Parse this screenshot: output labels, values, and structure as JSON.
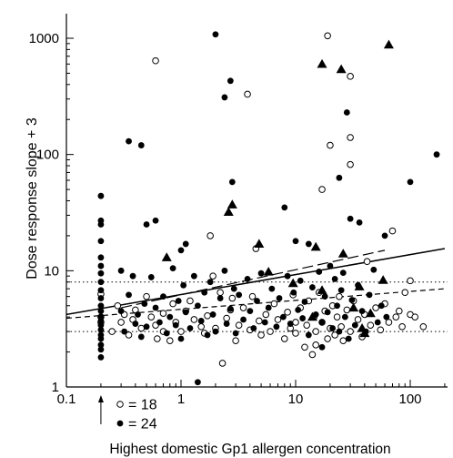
{
  "chart_data": {
    "type": "scatter",
    "title": "",
    "xlabel": "Highest domestic Gp1 allergen concentration",
    "ylabel": "Dose response slope + 3",
    "xscale": "log",
    "yscale": "log",
    "xlim": [
      0.1,
      200
    ],
    "ylim": [
      1,
      1500
    ],
    "x_ticks": [
      {
        "value": 0.1,
        "label": "0.1"
      },
      {
        "value": 1,
        "label": "1"
      },
      {
        "value": 10,
        "label": "10"
      },
      {
        "value": 100,
        "label": "100"
      }
    ],
    "y_ticks": [
      {
        "value": 1,
        "label": "1"
      },
      {
        "value": 10,
        "label": "10"
      },
      {
        "value": 100,
        "label": "100"
      },
      {
        "value": 1000,
        "label": "1000"
      }
    ],
    "grid": false,
    "reference_lines": [
      {
        "style": "dotted",
        "y": 8.0
      },
      {
        "style": "dotted",
        "y": 3.0
      }
    ],
    "regression_lines": [
      {
        "style": "solid",
        "points": [
          [
            0.1,
            4.2
          ],
          [
            200,
            15.5
          ]
        ]
      },
      {
        "style": "long-dash",
        "points": [
          [
            0.3,
            4.8
          ],
          [
            60,
            15.0
          ]
        ]
      },
      {
        "style": "short-dash",
        "points": [
          [
            0.1,
            3.9
          ],
          [
            200,
            7.0
          ]
        ]
      }
    ],
    "detection_limit_x": 0.2,
    "legend": {
      "placement": "bottom-left",
      "entries": [
        {
          "marker": "open-circle",
          "label": "= 18"
        },
        {
          "marker": "filled-circle",
          "label": "= 24"
        }
      ]
    },
    "series": [
      {
        "marker": "open-circle",
        "points": [
          [
            0.2,
            6.3
          ],
          [
            0.2,
            4.0
          ],
          [
            0.2,
            3.6
          ],
          [
            0.6,
            640
          ],
          [
            1.8,
            20
          ],
          [
            2.8,
            5.8
          ],
          [
            3.8,
            330
          ],
          [
            4.5,
            15.5
          ],
          [
            17,
            50
          ],
          [
            19,
            1050
          ],
          [
            20,
            120
          ],
          [
            30,
            470
          ],
          [
            30,
            140
          ],
          [
            30,
            82
          ],
          [
            70,
            22
          ],
          [
            100,
            8.2
          ],
          [
            0.25,
            3.0
          ],
          [
            0.28,
            5.0
          ],
          [
            0.3,
            3.6
          ],
          [
            0.32,
            4.2
          ],
          [
            0.35,
            2.8
          ],
          [
            0.38,
            3.8
          ],
          [
            0.4,
            4.6
          ],
          [
            0.45,
            3.2
          ],
          [
            0.5,
            6.0
          ],
          [
            0.55,
            4.0
          ],
          [
            0.6,
            3.4
          ],
          [
            0.62,
            2.6
          ],
          [
            0.7,
            3.0
          ],
          [
            0.7,
            4.3
          ],
          [
            0.8,
            2.5
          ],
          [
            0.85,
            5.2
          ],
          [
            0.9,
            3.6
          ],
          [
            1.0,
            3.0
          ],
          [
            1.1,
            4.5
          ],
          [
            1.2,
            5.5
          ],
          [
            1.3,
            3.8
          ],
          [
            1.5,
            3.3
          ],
          [
            1.6,
            2.9
          ],
          [
            1.7,
            4.1
          ],
          [
            1.9,
            9.0
          ],
          [
            2.0,
            3.2
          ],
          [
            2.2,
            6.5
          ],
          [
            2.3,
            1.6
          ],
          [
            2.5,
            3.9
          ],
          [
            2.7,
            4.6
          ],
          [
            3.0,
            2.5
          ],
          [
            3.2,
            3.4
          ],
          [
            3.5,
            4.8
          ],
          [
            4.0,
            3.1
          ],
          [
            4.2,
            6.0
          ],
          [
            4.8,
            3.7
          ],
          [
            5.0,
            2.8
          ],
          [
            5.5,
            4.2
          ],
          [
            6.0,
            3.0
          ],
          [
            6.5,
            5.2
          ],
          [
            7.0,
            3.8
          ],
          [
            8.0,
            2.6
          ],
          [
            8.5,
            4.4
          ],
          [
            9.0,
            3.2
          ],
          [
            9.5,
            6.2
          ],
          [
            10,
            3.6
          ],
          [
            10,
            2.9
          ],
          [
            11,
            4.8
          ],
          [
            12,
            2.2
          ],
          [
            12.5,
            3.4
          ],
          [
            13,
            5.5
          ],
          [
            14,
            1.9
          ],
          [
            14.5,
            4.0
          ],
          [
            15,
            3.0
          ],
          [
            15,
            2.3
          ],
          [
            16,
            6.5
          ],
          [
            17,
            3.6
          ],
          [
            18,
            4.5
          ],
          [
            19,
            2.6
          ],
          [
            20,
            3.2
          ],
          [
            21,
            5.0
          ],
          [
            22,
            2.8
          ],
          [
            23,
            4.0
          ],
          [
            24,
            6.0
          ],
          [
            25,
            3.3
          ],
          [
            26,
            2.5
          ],
          [
            28,
            4.6
          ],
          [
            30,
            3.0
          ],
          [
            32,
            5.5
          ],
          [
            35,
            3.8
          ],
          [
            38,
            2.7
          ],
          [
            40,
            4.2
          ],
          [
            42,
            12
          ],
          [
            45,
            3.4
          ],
          [
            50,
            4.8
          ],
          [
            55,
            3.1
          ],
          [
            60,
            5.2
          ],
          [
            65,
            3.6
          ],
          [
            75,
            4.0
          ],
          [
            80,
            4.5
          ],
          [
            85,
            3.3
          ],
          [
            90,
            6.5
          ],
          [
            100,
            4.2
          ],
          [
            110,
            4.0
          ],
          [
            130,
            3.3
          ]
        ]
      },
      {
        "marker": "filled-circle",
        "points": [
          [
            0.2,
            44
          ],
          [
            0.2,
            27
          ],
          [
            0.2,
            25
          ],
          [
            0.2,
            18
          ],
          [
            0.2,
            13
          ],
          [
            0.2,
            11
          ],
          [
            0.2,
            9.5
          ],
          [
            0.2,
            8.0
          ],
          [
            0.2,
            6.8
          ],
          [
            0.2,
            5.8
          ],
          [
            0.2,
            5.0
          ],
          [
            0.2,
            4.5
          ],
          [
            0.2,
            4.0
          ],
          [
            0.2,
            3.7
          ],
          [
            0.2,
            3.4
          ],
          [
            0.2,
            3.1
          ],
          [
            0.2,
            2.8
          ],
          [
            0.2,
            2.6
          ],
          [
            0.2,
            2.3
          ],
          [
            0.2,
            2.1
          ],
          [
            0.2,
            1.8
          ],
          [
            0.35,
            130
          ],
          [
            0.45,
            120
          ],
          [
            0.5,
            25
          ],
          [
            0.6,
            27
          ],
          [
            1.0,
            15
          ],
          [
            1.1,
            17
          ],
          [
            1.4,
            1.1
          ],
          [
            2.0,
            1080
          ],
          [
            2.4,
            310
          ],
          [
            2.7,
            430
          ],
          [
            2.8,
            58
          ],
          [
            8.0,
            35
          ],
          [
            10,
            18
          ],
          [
            13,
            17
          ],
          [
            24,
            63
          ],
          [
            28,
            230
          ],
          [
            30,
            28
          ],
          [
            36,
            26
          ],
          [
            60,
            20
          ],
          [
            100,
            58
          ],
          [
            170,
            100
          ],
          [
            0.3,
            10
          ],
          [
            0.3,
            4.5
          ],
          [
            0.32,
            3.0
          ],
          [
            0.35,
            6.2
          ],
          [
            0.38,
            9.0
          ],
          [
            0.4,
            3.5
          ],
          [
            0.42,
            4.2
          ],
          [
            0.45,
            2.7
          ],
          [
            0.48,
            5.2
          ],
          [
            0.5,
            3.3
          ],
          [
            0.55,
            8.8
          ],
          [
            0.6,
            4.8
          ],
          [
            0.65,
            3.6
          ],
          [
            0.7,
            6.0
          ],
          [
            0.75,
            2.9
          ],
          [
            0.8,
            4.0
          ],
          [
            0.85,
            10.5
          ],
          [
            0.9,
            3.4
          ],
          [
            0.95,
            5.5
          ],
          [
            1.0,
            2.6
          ],
          [
            1.05,
            7.5
          ],
          [
            1.1,
            4.4
          ],
          [
            1.2,
            3.2
          ],
          [
            1.3,
            9.0
          ],
          [
            1.4,
            5.0
          ],
          [
            1.5,
            3.7
          ],
          [
            1.6,
            6.5
          ],
          [
            1.7,
            2.8
          ],
          [
            1.8,
            8.0
          ],
          [
            1.9,
            4.2
          ],
          [
            2.0,
            3.0
          ],
          [
            2.2,
            5.8
          ],
          [
            2.4,
            10
          ],
          [
            2.5,
            3.5
          ],
          [
            2.7,
            4.7
          ],
          [
            2.9,
            7.0
          ],
          [
            3.0,
            2.9
          ],
          [
            3.2,
            6.2
          ],
          [
            3.5,
            3.8
          ],
          [
            3.8,
            8.5
          ],
          [
            4.0,
            4.5
          ],
          [
            4.3,
            3.2
          ],
          [
            4.6,
            5.5
          ],
          [
            5.0,
            9.5
          ],
          [
            5.4,
            3.6
          ],
          [
            5.8,
            4.8
          ],
          [
            6.2,
            7.0
          ],
          [
            6.8,
            3.3
          ],
          [
            7.2,
            5.8
          ],
          [
            7.8,
            4.0
          ],
          [
            8.5,
            9.0
          ],
          [
            9.0,
            3.5
          ],
          [
            9.6,
            6.5
          ],
          [
            10.5,
            4.6
          ],
          [
            11,
            8.2
          ],
          [
            11.5,
            3.9
          ],
          [
            12,
            5.4
          ],
          [
            13,
            2.8
          ],
          [
            14,
            7.2
          ],
          [
            15,
            4.2
          ],
          [
            16,
            9.8
          ],
          [
            17,
            2.2
          ],
          [
            17,
            3.6
          ],
          [
            18,
            6.0
          ],
          [
            19,
            4.4
          ],
          [
            20,
            11
          ],
          [
            21,
            3.2
          ],
          [
            22,
            8.5
          ],
          [
            23,
            5.0
          ],
          [
            24,
            3.0
          ],
          [
            25,
            6.8
          ],
          [
            26,
            9.6
          ],
          [
            27,
            4.0
          ],
          [
            29,
            2.6
          ],
          [
            31,
            5.6
          ],
          [
            33,
            3.4
          ],
          [
            35,
            7.5
          ],
          [
            38,
            4.5
          ],
          [
            41,
            3.0
          ],
          [
            44,
            6.2
          ],
          [
            48,
            10.2
          ],
          [
            52,
            3.6
          ],
          [
            56,
            5.0
          ],
          [
            62,
            4.0
          ]
        ]
      },
      {
        "marker": "filled-triangle",
        "points": [
          [
            0.75,
            13
          ],
          [
            2.6,
            32
          ],
          [
            2.8,
            37
          ],
          [
            4.8,
            17
          ],
          [
            5.8,
            9.8
          ],
          [
            9.5,
            7.8
          ],
          [
            14,
            4.0
          ],
          [
            15,
            16
          ],
          [
            17,
            600
          ],
          [
            17,
            6.8
          ],
          [
            25,
            540
          ],
          [
            26,
            14
          ],
          [
            32,
            4.8
          ],
          [
            36,
            7.3
          ],
          [
            38,
            3.2
          ],
          [
            40,
            2.9
          ],
          [
            45,
            4.3
          ],
          [
            58,
            8.3
          ],
          [
            65,
            880
          ]
        ]
      }
    ]
  }
}
